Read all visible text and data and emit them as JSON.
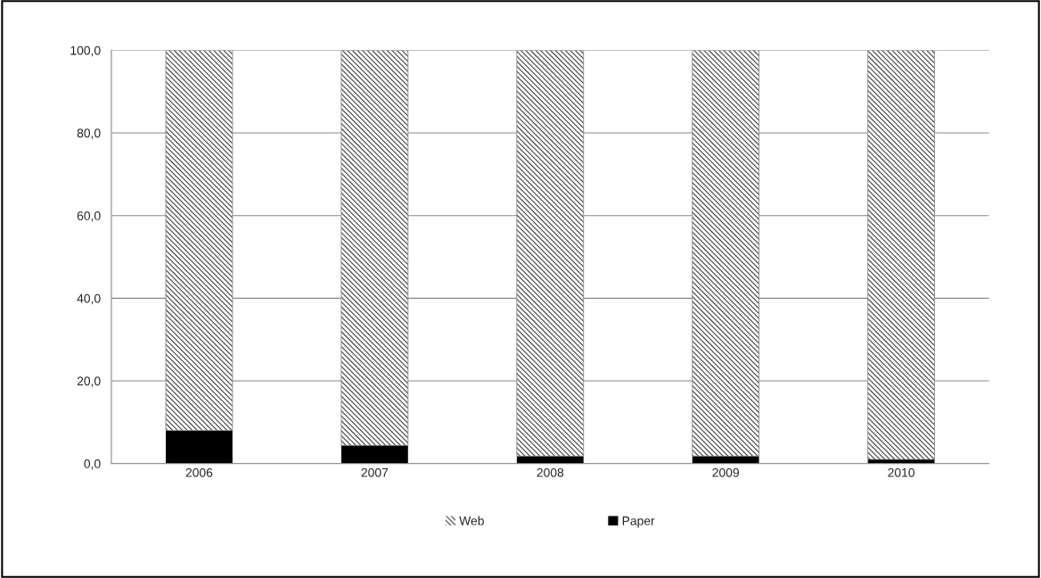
{
  "chart_data": {
    "type": "bar",
    "stacked": true,
    "categories": [
      "2006",
      "2007",
      "2008",
      "2009",
      "2010"
    ],
    "series": [
      {
        "name": "Paper",
        "color": "#000000",
        "values": [
          8.0,
          4.4,
          1.8,
          1.8,
          1.0
        ]
      },
      {
        "name": "Web",
        "color": "#404040",
        "values": [
          92.0,
          95.6,
          98.2,
          98.2,
          99.0
        ]
      }
    ],
    "ylim": [
      0,
      100
    ],
    "yticks": [
      {
        "value": 0,
        "label": "0,0"
      },
      {
        "value": 20,
        "label": "20,0"
      },
      {
        "value": 40,
        "label": "40,0"
      },
      {
        "value": 60,
        "label": "60,0"
      },
      {
        "value": 80,
        "label": "80,0"
      },
      {
        "value": 100,
        "label": "100,0"
      }
    ],
    "grid": "y",
    "legend": "bottom"
  }
}
